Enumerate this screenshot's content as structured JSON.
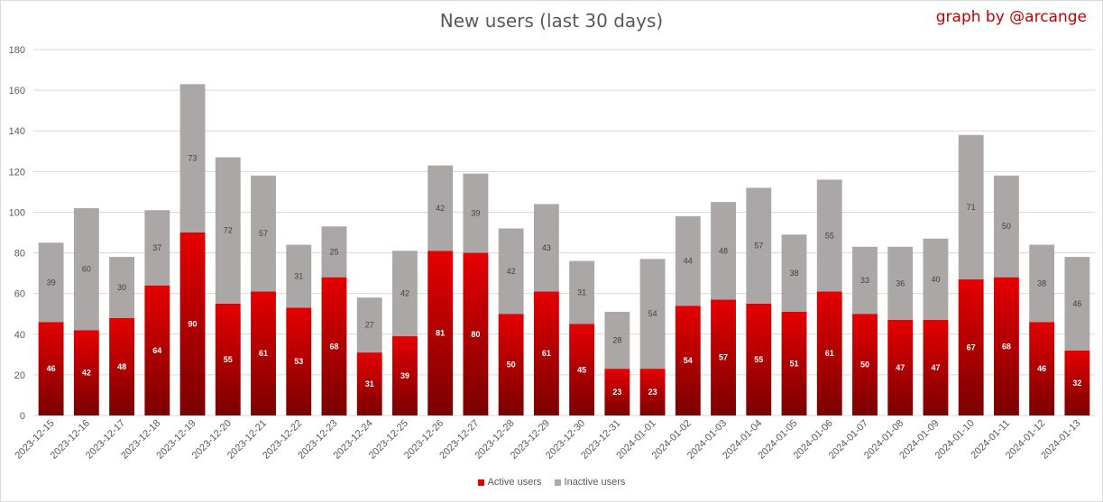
{
  "title": "New users (last 30 days)",
  "credit": "graph by @arcange",
  "colors": {
    "active_top": "#e50000",
    "active_bottom": "#7a0000",
    "inactive": "#aba7a7",
    "grid": "#d9d9d9"
  },
  "chart_data": {
    "type": "bar",
    "stacked": true,
    "title": "New users (last 30 days)",
    "ylim": [
      0,
      180
    ],
    "yticks": [
      0,
      20,
      40,
      60,
      80,
      100,
      120,
      140,
      160,
      180
    ],
    "grid": true,
    "legend_position": "bottom",
    "categories": [
      "2023-12-15",
      "2023-12-16",
      "2023-12-17",
      "2023-12-18",
      "2023-12-19",
      "2023-12-20",
      "2023-12-21",
      "2023-12-22",
      "2023-12-23",
      "2023-12-24",
      "2023-12-25",
      "2023-12-26",
      "2023-12-27",
      "2023-12-28",
      "2023-12-29",
      "2023-12-30",
      "2023-12-31",
      "2024-01-01",
      "2024-01-02",
      "2024-01-03",
      "2024-01-04",
      "2024-01-05",
      "2024-01-06",
      "2024-01-07",
      "2024-01-08",
      "2024-01-09",
      "2024-01-10",
      "2024-01-11",
      "2024-01-12",
      "2024-01-13"
    ],
    "series": [
      {
        "name": "Active users",
        "values": [
          46,
          42,
          48,
          64,
          90,
          55,
          61,
          53,
          68,
          31,
          39,
          81,
          80,
          50,
          61,
          45,
          23,
          23,
          54,
          57,
          55,
          51,
          61,
          50,
          47,
          47,
          67,
          68,
          46,
          32
        ]
      },
      {
        "name": "Inactive users",
        "values": [
          39,
          60,
          30,
          37,
          73,
          72,
          57,
          31,
          25,
          27,
          42,
          42,
          39,
          42,
          43,
          31,
          28,
          54,
          44,
          48,
          57,
          38,
          55,
          33,
          36,
          40,
          71,
          50,
          38,
          46
        ]
      }
    ]
  }
}
